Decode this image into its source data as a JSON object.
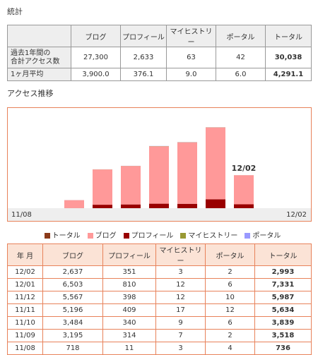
{
  "page_title": "統計",
  "summary_table": {
    "columns": [
      "ブログ",
      "プロフィール",
      "マイヒストリー",
      "ポータル",
      "トータル"
    ],
    "rows": [
      {
        "label": [
          "過去1年間の",
          "合計アクセス数"
        ],
        "cells": [
          "27,300",
          "2,633",
          "63",
          "42",
          "30,038"
        ]
      },
      {
        "label": [
          "1ヶ月平均"
        ],
        "cells": [
          "3,900.0",
          "376.1",
          "9.0",
          "6.0",
          "4,291.1"
        ]
      }
    ]
  },
  "section_title": "アクセス推移",
  "chart_data": {
    "type": "stacked-bar",
    "categories": [
      "11/08",
      null,
      null,
      null,
      null,
      null,
      "12/02"
    ],
    "annotation": "12/02",
    "ylim": [
      0,
      8500
    ],
    "series": [
      {
        "name": "プロフィール",
        "color": "#990000",
        "values": [
          11,
          314,
          340,
          409,
          398,
          810,
          351
        ]
      },
      {
        "name": "ブログ",
        "color": "#ff9999",
        "values": [
          718,
          3195,
          3484,
          5196,
          5567,
          6503,
          2637
        ]
      },
      {
        "name": "マイヒストリー",
        "color": "#999933",
        "values": [
          3,
          7,
          9,
          17,
          12,
          12,
          3
        ]
      },
      {
        "name": "ポータル",
        "color": "#9999ff",
        "values": [
          4,
          2,
          6,
          12,
          10,
          6,
          2
        ]
      }
    ],
    "legend_order": [
      1,
      0,
      2,
      3
    ],
    "total_legend": {
      "name": "トータル",
      "color": "#8b3a1a"
    }
  },
  "monthly_table": {
    "columns": [
      "年 月",
      "ブログ",
      "プロフィール",
      "マイヒストリー",
      "ポータル",
      "トータル"
    ],
    "rows": [
      [
        "12/02",
        "2,637",
        "351",
        "3",
        "2",
        "2,993"
      ],
      [
        "12/01",
        "6,503",
        "810",
        "12",
        "6",
        "7,331"
      ],
      [
        "11/12",
        "5,567",
        "398",
        "12",
        "10",
        "5,987"
      ],
      [
        "11/11",
        "5,196",
        "409",
        "17",
        "12",
        "5,634"
      ],
      [
        "11/10",
        "3,484",
        "340",
        "9",
        "6",
        "3,839"
      ],
      [
        "11/09",
        "3,195",
        "314",
        "7",
        "2",
        "3,518"
      ],
      [
        "11/08",
        "718",
        "11",
        "3",
        "4",
        "736"
      ]
    ]
  }
}
